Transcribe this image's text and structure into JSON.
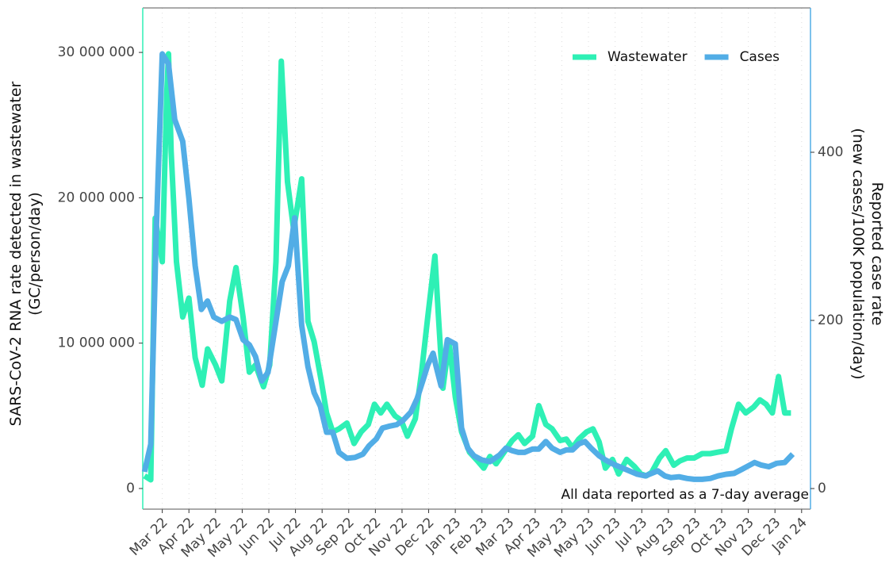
{
  "chart_data": {
    "type": "line",
    "y_label": "SARS-CoV-2 RNA rate detected in wastewater\n(GC/person/day)",
    "y2_label": "Reported case rate\n(new cases/100K population/day)",
    "annotation": "All data reported as a 7-day average",
    "legend": "top-right",
    "grid": true,
    "xlim": [
      0,
      752
    ],
    "xticks": [
      {
        "value": 22,
        "label": "Mar 22"
      },
      {
        "value": 52,
        "label": "Apr 22"
      },
      {
        "value": 82,
        "label": "May 22"
      },
      {
        "value": 112,
        "label": "May 22"
      },
      {
        "value": 142,
        "label": "Jun 22"
      },
      {
        "value": 172,
        "label": "Jul 22"
      },
      {
        "value": 202,
        "label": "Aug 22"
      },
      {
        "value": 232,
        "label": "Sep 22"
      },
      {
        "value": 262,
        "label": "Oct 22"
      },
      {
        "value": 292,
        "label": "Nov 22"
      },
      {
        "value": 322,
        "label": "Dec 22"
      },
      {
        "value": 352,
        "label": "Jan 23"
      },
      {
        "value": 382,
        "label": "Feb 23"
      },
      {
        "value": 412,
        "label": "Mar 23"
      },
      {
        "value": 442,
        "label": "Apr 23"
      },
      {
        "value": 472,
        "label": "May 23"
      },
      {
        "value": 502,
        "label": "May 23"
      },
      {
        "value": 532,
        "label": "Jun 23"
      },
      {
        "value": 562,
        "label": "Jul 23"
      },
      {
        "value": 592,
        "label": "Aug 23"
      },
      {
        "value": 622,
        "label": "Sep 23"
      },
      {
        "value": 652,
        "label": "Oct 23"
      },
      {
        "value": 682,
        "label": "Nov 23"
      },
      {
        "value": 712,
        "label": "Dec 23"
      },
      {
        "value": 742,
        "label": "Jan 24"
      }
    ],
    "ylim": [
      -1420000,
      33060000
    ],
    "yticks": [
      0,
      {
        "value": 10000000,
        "label": "10 000 000"
      },
      {
        "value": 20000000,
        "label": "20 000 000"
      },
      {
        "value": 30000000,
        "label": "30 000 000"
      }
    ],
    "y2lim": [
      -24.5,
      571.7
    ],
    "y2ticks": [
      0,
      200,
      400
    ],
    "series": [
      {
        "name": "Wastewater",
        "color": "#2ef0b5",
        "x": [
          2,
          9,
          14,
          22,
          27,
          29,
          32,
          38,
          45,
          52,
          59,
          67,
          73,
          82,
          89,
          98,
          105,
          113,
          120,
          127,
          136,
          143,
          150,
          156,
          163,
          170,
          179,
          186,
          193,
          201,
          207,
          214,
          221,
          230,
          238,
          246,
          254,
          261,
          268,
          275,
          284,
          291,
          298,
          307,
          314,
          321,
          329,
          333,
          338,
          345,
          352,
          359,
          368,
          377,
          384,
          391,
          398,
          407,
          416,
          423,
          430,
          439,
          446,
          454,
          461,
          470,
          477,
          484,
          491,
          500,
          507,
          514,
          521,
          529,
          536,
          545,
          554,
          561,
          567,
          573,
          582,
          589,
          598,
          605,
          613,
          621,
          630,
          639,
          648,
          657,
          663,
          671,
          679,
          688,
          695,
          702,
          709,
          716,
          723,
          730
        ],
        "values": [
          870000,
          600000,
          18600000,
          15600000,
          27100000,
          29900000,
          23200000,
          15600000,
          11800000,
          13100000,
          9000000,
          7100000,
          9600000,
          8500000,
          7400000,
          12900000,
          15200000,
          11800000,
          8000000,
          8500000,
          7000000,
          8500000,
          15600000,
          29400000,
          21100000,
          17800000,
          21300000,
          11500000,
          10100000,
          7400000,
          5200000,
          3900000,
          4100000,
          4500000,
          3100000,
          3900000,
          4400000,
          5800000,
          5200000,
          5800000,
          5000000,
          4700000,
          3600000,
          4800000,
          8000000,
          11800000,
          16000000,
          11800000,
          6900000,
          10100000,
          6300000,
          3900000,
          2500000,
          1900000,
          1400000,
          2200000,
          1700000,
          2500000,
          3300000,
          3700000,
          3100000,
          3600000,
          5700000,
          4400000,
          4100000,
          3300000,
          3400000,
          2800000,
          3400000,
          3900000,
          4100000,
          3200000,
          1400000,
          2000000,
          1000000,
          2000000,
          1500000,
          1000000,
          870000,
          1100000,
          2100000,
          2600000,
          1600000,
          1900000,
          2100000,
          2100000,
          2400000,
          2400000,
          2500000,
          2600000,
          4100000,
          5800000,
          5200000,
          5600000,
          6100000,
          5800000,
          5200000,
          7700000,
          5200000,
          5200000
        ]
      },
      {
        "name": "Cases",
        "color": "#52ade6",
        "axis": "y2",
        "x": [
          2,
          9,
          15,
          22,
          29,
          36,
          45,
          52,
          59,
          66,
          73,
          80,
          89,
          98,
          105,
          113,
          120,
          127,
          134,
          141,
          148,
          157,
          164,
          171,
          179,
          186,
          193,
          200,
          207,
          214,
          221,
          230,
          239,
          248,
          255,
          263,
          270,
          277,
          286,
          293,
          302,
          309,
          316,
          321,
          327,
          330,
          336,
          343,
          352,
          359,
          366,
          373,
          382,
          391,
          402,
          409,
          416,
          423,
          430,
          439,
          446,
          454,
          461,
          470,
          477,
          484,
          491,
          498,
          505,
          514,
          521,
          530,
          539,
          548,
          557,
          566,
          573,
          580,
          588,
          595,
          604,
          613,
          621,
          630,
          639,
          648,
          657,
          666,
          675,
          682,
          689,
          696,
          705,
          714,
          723,
          732
        ],
        "values": [
          19.8,
          52.8,
          298,
          517,
          505,
          439,
          413,
          345,
          265,
          213,
          223,
          204,
          199,
          204,
          201,
          177,
          171,
          157,
          128,
          138,
          185,
          246,
          265,
          322,
          194,
          145,
          114,
          98,
          67,
          67,
          43,
          36,
          37,
          41,
          51,
          59,
          72,
          74,
          76,
          81,
          91,
          107,
          130,
          147,
          161,
          147,
          122,
          177,
          172,
          72,
          48,
          39,
          34,
          32,
          40,
          48,
          45,
          43,
          43,
          47,
          47,
          56,
          48,
          43,
          46,
          46,
          53,
          56,
          48,
          39,
          34,
          29,
          25,
          21,
          17,
          15,
          18,
          21,
          15,
          13,
          14,
          12,
          11,
          11,
          12,
          15,
          17,
          18,
          23,
          27,
          31,
          28,
          26,
          30,
          31,
          41
        ]
      }
    ]
  }
}
